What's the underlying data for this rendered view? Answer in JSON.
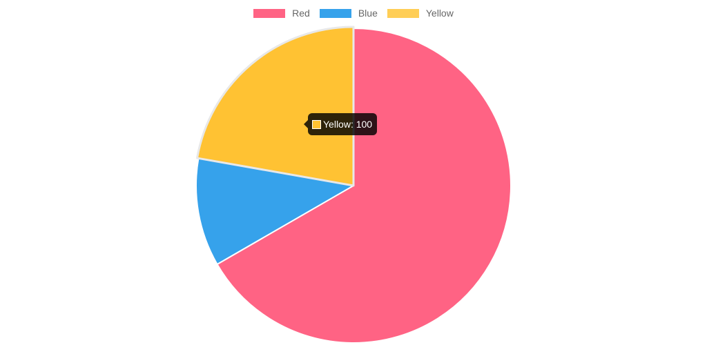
{
  "chart_data": {
    "type": "pie",
    "categories": [
      "Red",
      "Blue",
      "Yellow"
    ],
    "values": [
      300,
      50,
      100
    ],
    "colors": [
      "#FF6384",
      "#36A2EB",
      "#FFCE56"
    ],
    "legend_position": "top",
    "title": ""
  },
  "legend": {
    "items": [
      {
        "label": "Red",
        "color": "#FF6384"
      },
      {
        "label": "Blue",
        "color": "#36A2EB"
      },
      {
        "label": "Yellow",
        "color": "#FFCE56"
      }
    ]
  },
  "tooltip": {
    "label": "Yellow",
    "value": 100,
    "text": "Yellow: 100",
    "swatch_color": "#FFC233",
    "visible": true
  },
  "hover": {
    "category": "Yellow",
    "hover_color": "#FFC233"
  }
}
